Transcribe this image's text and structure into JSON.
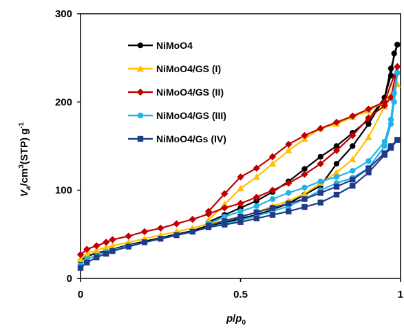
{
  "chart_data": {
    "type": "line",
    "title": "",
    "xlabel_parts": {
      "main": "p",
      "slash": "/",
      "sub_main": "p",
      "sub": "0"
    },
    "ylabel_parts": {
      "v": "V",
      "v_sub": "a",
      "unit_pre": "/cm",
      "unit_sup": "3",
      "unit_mid": "(STP) g",
      "unit_sup2": "-1"
    },
    "xlim": [
      0,
      1
    ],
    "ylim": [
      0,
      300
    ],
    "x_ticks": [
      "0",
      "0.5",
      "1"
    ],
    "y_ticks": [
      "0",
      "100",
      "200",
      "300"
    ],
    "grid": false,
    "legend_position": "top-left",
    "series": [
      {
        "name": "NiMoO4",
        "color": "#000000",
        "marker": "circle",
        "adsorption": [
          [
            0,
            20
          ],
          [
            0.02,
            25
          ],
          [
            0.05,
            29
          ],
          [
            0.08,
            31
          ],
          [
            0.1,
            33
          ],
          [
            0.15,
            38
          ],
          [
            0.2,
            42
          ],
          [
            0.25,
            46
          ],
          [
            0.3,
            50
          ],
          [
            0.35,
            54
          ],
          [
            0.4,
            60
          ],
          [
            0.45,
            63
          ],
          [
            0.5,
            68
          ],
          [
            0.55,
            72
          ],
          [
            0.6,
            78
          ],
          [
            0.65,
            85
          ],
          [
            0.7,
            95
          ],
          [
            0.75,
            105
          ],
          [
            0.8,
            130
          ],
          [
            0.85,
            150
          ],
          [
            0.9,
            175
          ],
          [
            0.95,
            205
          ],
          [
            0.97,
            230
          ],
          [
            0.98,
            255
          ],
          [
            0.99,
            265
          ]
        ],
        "desorption": [
          [
            0.99,
            265
          ],
          [
            0.97,
            238
          ],
          [
            0.95,
            205
          ],
          [
            0.9,
            180
          ],
          [
            0.85,
            165
          ],
          [
            0.8,
            150
          ],
          [
            0.75,
            138
          ],
          [
            0.7,
            124
          ],
          [
            0.65,
            110
          ],
          [
            0.6,
            98
          ],
          [
            0.55,
            88
          ],
          [
            0.5,
            80
          ],
          [
            0.45,
            72
          ],
          [
            0.4,
            64
          ]
        ]
      },
      {
        "name": "NiMoO4/GS (I)",
        "color": "#ffc000",
        "marker": "triangle",
        "adsorption": [
          [
            0,
            22
          ],
          [
            0.02,
            28
          ],
          [
            0.05,
            32
          ],
          [
            0.08,
            35
          ],
          [
            0.1,
            37
          ],
          [
            0.15,
            41
          ],
          [
            0.2,
            45
          ],
          [
            0.25,
            49
          ],
          [
            0.3,
            53
          ],
          [
            0.35,
            57
          ],
          [
            0.4,
            62
          ],
          [
            0.45,
            66
          ],
          [
            0.5,
            70
          ],
          [
            0.55,
            75
          ],
          [
            0.6,
            82
          ],
          [
            0.65,
            88
          ],
          [
            0.7,
            96
          ],
          [
            0.75,
            108
          ],
          [
            0.8,
            120
          ],
          [
            0.85,
            135
          ],
          [
            0.9,
            160
          ],
          [
            0.95,
            195
          ],
          [
            0.97,
            208
          ],
          [
            0.99,
            220
          ]
        ],
        "desorption": [
          [
            0.99,
            220
          ],
          [
            0.95,
            200
          ],
          [
            0.9,
            190
          ],
          [
            0.85,
            183
          ],
          [
            0.8,
            175
          ],
          [
            0.75,
            170
          ],
          [
            0.7,
            158
          ],
          [
            0.65,
            145
          ],
          [
            0.6,
            130
          ],
          [
            0.55,
            115
          ],
          [
            0.5,
            102
          ],
          [
            0.45,
            84
          ],
          [
            0.4,
            66
          ]
        ]
      },
      {
        "name": "NiMoO4/GS (II)",
        "color": "#c00000",
        "marker": "diamond",
        "adsorption": [
          [
            0,
            27
          ],
          [
            0.02,
            33
          ],
          [
            0.05,
            37
          ],
          [
            0.08,
            41
          ],
          [
            0.1,
            44
          ],
          [
            0.15,
            48
          ],
          [
            0.2,
            53
          ],
          [
            0.25,
            57
          ],
          [
            0.3,
            62
          ],
          [
            0.35,
            67
          ],
          [
            0.4,
            73
          ],
          [
            0.45,
            80
          ],
          [
            0.5,
            85
          ],
          [
            0.55,
            92
          ],
          [
            0.6,
            100
          ],
          [
            0.65,
            108
          ],
          [
            0.7,
            118
          ],
          [
            0.75,
            130
          ],
          [
            0.8,
            145
          ],
          [
            0.85,
            162
          ],
          [
            0.9,
            182
          ],
          [
            0.95,
            196
          ],
          [
            0.97,
            205
          ],
          [
            0.99,
            240
          ]
        ],
        "desorption": [
          [
            0.99,
            240
          ],
          [
            0.95,
            200
          ],
          [
            0.9,
            192
          ],
          [
            0.85,
            184
          ],
          [
            0.8,
            177
          ],
          [
            0.75,
            170
          ],
          [
            0.7,
            162
          ],
          [
            0.65,
            152
          ],
          [
            0.6,
            138
          ],
          [
            0.55,
            125
          ],
          [
            0.5,
            115
          ],
          [
            0.45,
            96
          ],
          [
            0.4,
            76
          ]
        ]
      },
      {
        "name": "NiMoO4/GS (III)",
        "color": "#1fb3e8",
        "marker": "circle",
        "adsorption": [
          [
            0,
            15
          ],
          [
            0.02,
            22
          ],
          [
            0.05,
            26
          ],
          [
            0.08,
            30
          ],
          [
            0.1,
            32
          ],
          [
            0.15,
            37
          ],
          [
            0.2,
            41
          ],
          [
            0.25,
            45
          ],
          [
            0.3,
            49
          ],
          [
            0.35,
            53
          ],
          [
            0.4,
            58
          ],
          [
            0.45,
            62
          ],
          [
            0.5,
            66
          ],
          [
            0.55,
            71
          ],
          [
            0.6,
            76
          ],
          [
            0.65,
            82
          ],
          [
            0.7,
            90
          ],
          [
            0.75,
            100
          ],
          [
            0.8,
            108
          ],
          [
            0.85,
            114
          ],
          [
            0.9,
            125
          ],
          [
            0.95,
            150
          ],
          [
            0.97,
            175
          ],
          [
            0.98,
            200
          ],
          [
            0.99,
            233
          ]
        ],
        "desorption": [
          [
            0.99,
            233
          ],
          [
            0.98,
            210
          ],
          [
            0.97,
            180
          ],
          [
            0.95,
            155
          ],
          [
            0.9,
            133
          ],
          [
            0.85,
            122
          ],
          [
            0.8,
            115
          ],
          [
            0.75,
            110
          ],
          [
            0.7,
            103
          ],
          [
            0.65,
            97
          ],
          [
            0.6,
            90
          ],
          [
            0.55,
            82
          ],
          [
            0.5,
            76
          ],
          [
            0.45,
            70
          ],
          [
            0.4,
            62
          ]
        ]
      },
      {
        "name": "NiMoO4/Gs (IV)",
        "color": "#1f3c88",
        "marker": "square",
        "adsorption": [
          [
            0,
            12
          ],
          [
            0.02,
            18
          ],
          [
            0.05,
            24
          ],
          [
            0.08,
            28
          ],
          [
            0.1,
            31
          ],
          [
            0.15,
            36
          ],
          [
            0.2,
            41
          ],
          [
            0.25,
            45
          ],
          [
            0.3,
            49
          ],
          [
            0.35,
            53
          ],
          [
            0.4,
            58
          ],
          [
            0.45,
            61
          ],
          [
            0.5,
            64
          ],
          [
            0.55,
            68
          ],
          [
            0.6,
            72
          ],
          [
            0.65,
            76
          ],
          [
            0.7,
            81
          ],
          [
            0.75,
            86
          ],
          [
            0.8,
            95
          ],
          [
            0.85,
            105
          ],
          [
            0.9,
            120
          ],
          [
            0.95,
            140
          ],
          [
            0.97,
            148
          ],
          [
            0.99,
            157
          ]
        ],
        "desorption": [
          [
            0.99,
            157
          ],
          [
            0.97,
            150
          ],
          [
            0.95,
            142
          ],
          [
            0.9,
            125
          ],
          [
            0.85,
            112
          ],
          [
            0.8,
            104
          ],
          [
            0.75,
            97
          ],
          [
            0.7,
            90
          ],
          [
            0.65,
            85
          ],
          [
            0.6,
            80
          ],
          [
            0.55,
            75
          ],
          [
            0.5,
            70
          ],
          [
            0.45,
            65
          ],
          [
            0.4,
            60
          ]
        ]
      }
    ]
  }
}
